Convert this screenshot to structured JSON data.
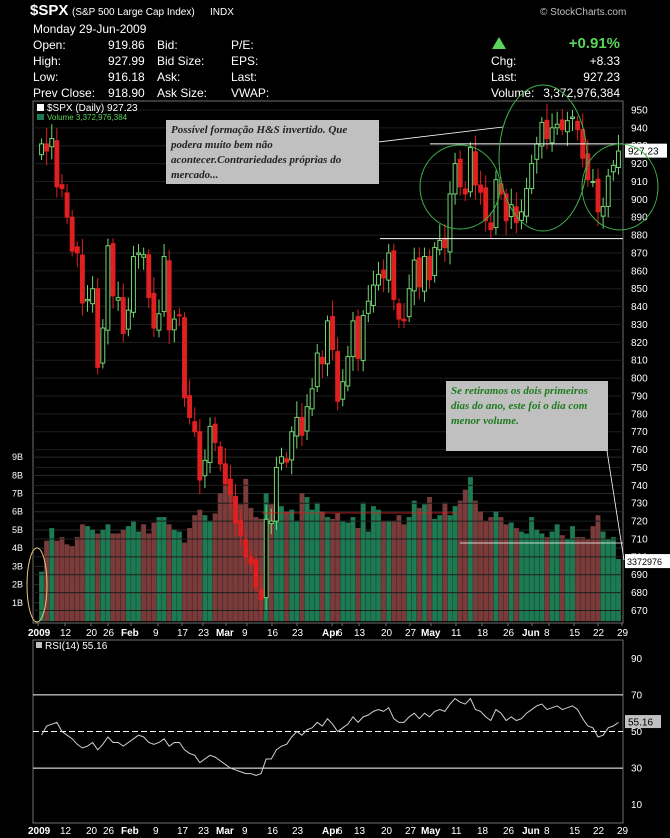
{
  "header": {
    "symbol": "$SPX",
    "name": "(S&P 500 Large Cap Index)",
    "exchange": "INDX",
    "watermark": "© StockCharts.com",
    "date": "Monday  29-Jun-2009",
    "change_pct": "+0.91%",
    "arrow_color": "#5ad45a",
    "fields": [
      {
        "label": "Open:",
        "value": "919.86"
      },
      {
        "label": "High:",
        "value": "927.99"
      },
      {
        "label": "Low:",
        "value": "916.18"
      },
      {
        "label": "Prev Close:",
        "value": "918.90"
      }
    ],
    "fields2": [
      "Bid:",
      "Bid Size:",
      "Ask:",
      "Ask Size:"
    ],
    "fields3": [
      "P/E:",
      "EPS:",
      "Last:",
      "VWAP:"
    ],
    "right": [
      {
        "label": "Chg:",
        "value": "+8.33"
      },
      {
        "label": "Last:",
        "value": "927.23"
      },
      {
        "label": "Volume:",
        "value": "3,372,976,384"
      }
    ]
  },
  "notes": {
    "hs": "Possível formação H&S invertido. Que podera muito bem não acontecer.Contrariedades próprias do mercado...",
    "volume": "Se retiramos os dois primeiros dias do ano, este foi o dia com menor volume."
  },
  "chart_data": [
    {
      "type": "candlestick",
      "title": "$SPX (Daily) 927.23",
      "legend": [
        "$SPX (Daily) 927.23",
        "Volume 3,372,976,384"
      ],
      "price_axis": [
        670,
        680,
        690,
        700,
        710,
        720,
        730,
        740,
        750,
        760,
        770,
        780,
        790,
        800,
        810,
        820,
        830,
        840,
        850,
        860,
        870,
        880,
        890,
        900,
        910,
        920,
        930,
        940,
        950
      ],
      "ylim": [
        663,
        955
      ],
      "last_price_label": "927.23",
      "last_volume_label": "3372976",
      "x_labels": [
        "2009",
        "12",
        "20",
        "26",
        "Feb",
        "9",
        "17",
        "23",
        "Mar",
        "9",
        "16",
        "23",
        "Apr",
        "6",
        "13",
        "20",
        "27",
        "May",
        "11",
        "18",
        "26",
        "Jun",
        "8",
        "15",
        "22",
        "29"
      ],
      "close": [
        931,
        927,
        934,
        907,
        906,
        890,
        871,
        870,
        842,
        844,
        850,
        806,
        828,
        874,
        846,
        845,
        825,
        838,
        868,
        870,
        869,
        845,
        828,
        836,
        868,
        827,
        833,
        835,
        789,
        778,
        770,
        743,
        754,
        773,
        764,
        752,
        741,
        735,
        719,
        712,
        700,
        696,
        683,
        676,
        721,
        720,
        750,
        756,
        753,
        770,
        778,
        768,
        784,
        794,
        814,
        808,
        832,
        816,
        787,
        798,
        812,
        832,
        811,
        835,
        843,
        852,
        858,
        856,
        870,
        844,
        833,
        832,
        850,
        866,
        851,
        868,
        855,
        873,
        877,
        873,
        903,
        920,
        907,
        903,
        929,
        908,
        904,
        888,
        883,
        911,
        903,
        888,
        897,
        887,
        893,
        906,
        920,
        931,
        943,
        934,
        940,
        942,
        939,
        944,
        946,
        939,
        923,
        911,
        910,
        893,
        896,
        913,
        919,
        927
      ],
      "volume_axis": [
        "1B",
        "2B",
        "3B",
        "4B",
        "5B",
        "6B",
        "7B",
        "8B",
        "9B"
      ],
      "volume_billions": [
        2.7,
        4.4,
        5.1,
        4.4,
        4.6,
        4.2,
        4.1,
        4.6,
        5.3,
        5.2,
        5.0,
        4.8,
        5.0,
        5.3,
        4.8,
        4.8,
        5.0,
        5.2,
        5.5,
        4.9,
        5.3,
        4.8,
        5.4,
        5.7,
        5.7,
        5.3,
        5.0,
        4.9,
        4.3,
        5.1,
        5.8,
        6.1,
        5.8,
        5.5,
        5.9,
        7.0,
        7.5,
        7.0,
        6.7,
        6.4,
        7.8,
        6.2,
        5.7,
        5.6,
        7.0,
        6.4,
        6.5,
        6.3,
        6.0,
        6.1,
        5.5,
        7.0,
        6.8,
        6.1,
        6.5,
        6.0,
        5.7,
        5.6,
        5.9,
        5.5,
        5.4,
        5.7,
        5.1,
        6.5,
        4.9,
        6.3,
        6.1,
        5.5,
        5.5,
        5.5,
        5.8,
        5.3,
        5.7,
        6.6,
        6.2,
        6.4,
        6.8,
        5.6,
        5.8,
        6.5,
        5.8,
        6.3,
        6.6,
        7.2,
        7.9,
        6.6,
        6.0,
        5.5,
        5.7,
        6.0,
        5.7,
        5.3,
        5.4,
        5.1,
        4.9,
        4.8,
        5.7,
        5.0,
        4.8,
        4.6,
        4.9,
        5.3,
        4.7,
        4.5,
        5.2,
        4.6,
        4.6,
        4.5,
        5.2,
        5.8,
        4.9,
        4.5,
        4.6,
        3.4
      ]
    },
    {
      "type": "line",
      "title": "RSI(14) 55.16",
      "last_label": "55.16",
      "y_axis": [
        10,
        30,
        50,
        70,
        90
      ],
      "ylim": [
        0,
        100
      ],
      "reference_lines": [
        30,
        50,
        70
      ],
      "x_labels": [
        "2009",
        "12",
        "20",
        "26",
        "Feb",
        "9",
        "17",
        "23",
        "Mar",
        "9",
        "16",
        "23",
        "Apr",
        "6",
        "13",
        "20",
        "27",
        "May",
        "11",
        "18",
        "26",
        "Jun",
        "8",
        "15",
        "22",
        "29"
      ],
      "values": [
        48,
        53,
        54,
        55,
        50,
        48,
        46,
        43,
        41,
        42,
        44,
        40,
        43,
        47,
        44,
        44,
        42,
        44,
        46,
        48,
        47,
        44,
        43,
        44,
        46,
        42,
        44,
        44,
        40,
        38,
        37,
        33,
        35,
        37,
        36,
        34,
        32,
        30,
        29,
        28,
        27,
        27,
        26,
        27,
        35,
        35,
        40,
        42,
        43,
        47,
        50,
        48,
        51,
        52,
        55,
        53,
        57,
        54,
        50,
        52,
        54,
        58,
        55,
        58,
        59,
        61,
        62,
        61,
        63,
        57,
        55,
        55,
        58,
        60,
        57,
        60,
        58,
        61,
        62,
        61,
        65,
        68,
        66,
        65,
        68,
        62,
        61,
        58,
        56,
        62,
        60,
        56,
        58,
        56,
        57,
        60,
        62,
        64,
        65,
        62,
        63,
        64,
        62,
        63,
        64,
        62,
        57,
        53,
        52,
        47,
        48,
        52,
        53,
        55
      ]
    }
  ]
}
